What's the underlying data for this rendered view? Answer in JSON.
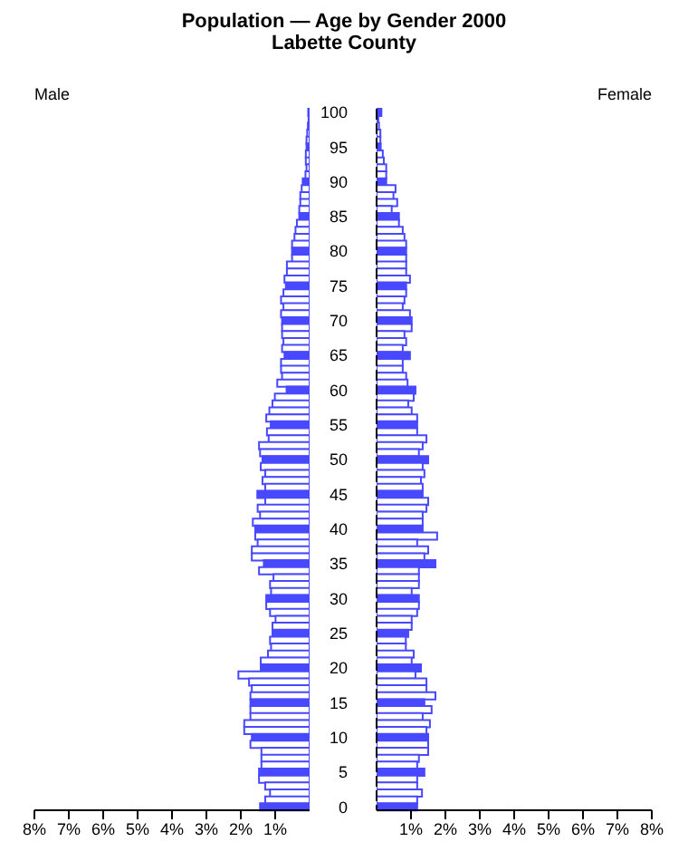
{
  "chart_data": [
    {
      "type": "bar",
      "orientation": "horizontal",
      "title": "Population — Age by Gender 2000",
      "subtitle": "Labette County",
      "tick_labels": "x",
      "categories": [
        "100",
        null,
        null,
        null,
        null,
        "95",
        null,
        null,
        null,
        null,
        "90",
        null,
        null,
        null,
        null,
        "85",
        null,
        null,
        null,
        null,
        "80",
        null,
        null,
        null,
        null,
        "75",
        null,
        null,
        null,
        null,
        "70",
        null,
        null,
        null,
        null,
        "65",
        null,
        null,
        null,
        null,
        "60",
        null,
        null,
        null,
        null,
        "55",
        null,
        null,
        null,
        null,
        "50",
        null,
        null,
        null,
        null,
        "45",
        null,
        null,
        null,
        null,
        "40",
        null,
        null,
        null,
        null,
        "35",
        null,
        null,
        null,
        null,
        "30",
        null,
        null,
        null,
        null,
        "25",
        null,
        null,
        null,
        null,
        "20",
        null,
        null,
        null,
        null,
        "15",
        null,
        null,
        null,
        null,
        "10",
        null,
        null,
        null,
        null,
        "5",
        null,
        null,
        null,
        null,
        "0"
      ],
      "xlim": [
        8,
        0
      ],
      "xticks": [
        {
          "value": 8,
          "label": "8%"
        },
        {
          "value": 7,
          "label": "7%"
        },
        {
          "value": 6,
          "label": "6%"
        },
        {
          "value": 5,
          "label": "5%"
        },
        {
          "value": 4,
          "label": "4%"
        },
        {
          "value": 3,
          "label": "3%"
        },
        {
          "value": 2,
          "label": "2%"
        },
        {
          "value": 1,
          "label": "1%"
        }
      ],
      "colors": [
        "#4848ff",
        "#ffffff",
        "#ffffff",
        "#ffffff",
        "#ffffff",
        "#4848ff",
        "#ffffff",
        "#ffffff",
        "#ffffff",
        "#ffffff",
        "#4848ff",
        "#ffffff",
        "#ffffff",
        "#ffffff",
        "#ffffff",
        "#4848ff",
        "#ffffff",
        "#ffffff",
        "#ffffff",
        "#ffffff",
        "#4848ff",
        "#ffffff",
        "#ffffff",
        "#ffffff",
        "#ffffff",
        "#4848ff",
        "#ffffff",
        "#ffffff",
        "#ffffff",
        "#ffffff",
        "#4848ff",
        "#ffffff",
        "#ffffff",
        "#ffffff",
        "#ffffff",
        "#4848ff",
        "#ffffff",
        "#ffffff",
        "#ffffff",
        "#ffffff",
        "#4848ff",
        "#ffffff",
        "#ffffff",
        "#ffffff",
        "#ffffff",
        "#4848ff",
        "#ffffff",
        "#ffffff",
        "#ffffff",
        "#ffffff",
        "#4848ff",
        "#ffffff",
        "#ffffff",
        "#ffffff",
        "#ffffff",
        "#4848ff",
        "#ffffff",
        "#ffffff",
        "#ffffff",
        "#ffffff",
        "#4848ff",
        "#ffffff",
        "#ffffff",
        "#ffffff",
        "#ffffff",
        "#4848ff",
        "#ffffff",
        "#ffffff",
        "#ffffff",
        "#ffffff",
        "#4848ff",
        "#ffffff",
        "#ffffff",
        "#ffffff",
        "#ffffff",
        "#4848ff",
        "#ffffff",
        "#ffffff",
        "#ffffff",
        "#ffffff",
        "#4848ff",
        "#ffffff",
        "#ffffff",
        "#ffffff",
        "#ffffff",
        "#4848ff",
        "#ffffff",
        "#ffffff",
        "#ffffff",
        "#ffffff",
        "#4848ff",
        "#ffffff",
        "#ffffff",
        "#ffffff",
        "#ffffff",
        "#4848ff",
        "#ffffff",
        "#ffffff",
        "#ffffff",
        "#ffffff",
        "#4848ff"
      ],
      "series": [
        {
          "name": "Male",
          "color": "#4848ff",
          "values": [
            0.04,
            0.03,
            0.05,
            0.07,
            0.09,
            0.09,
            0.11,
            0.11,
            0.09,
            0.12,
            0.2,
            0.23,
            0.27,
            0.27,
            0.3,
            0.3,
            0.37,
            0.41,
            0.44,
            0.51,
            0.51,
            0.51,
            0.66,
            0.66,
            0.73,
            0.69,
            0.76,
            0.83,
            0.76,
            0.83,
            0.8,
            0.8,
            0.8,
            0.76,
            0.8,
            0.73,
            0.83,
            0.83,
            0.8,
            0.94,
            0.67,
            1.01,
            1.08,
            1.17,
            1.26,
            1.13,
            1.24,
            1.19,
            1.47,
            1.44,
            1.37,
            1.42,
            1.29,
            1.37,
            1.29,
            1.52,
            1.29,
            1.51,
            1.44,
            1.65,
            1.58,
            1.58,
            1.51,
            1.68,
            1.68,
            1.33,
            1.47,
            1.05,
            1.15,
            1.12,
            1.26,
            1.26,
            1.15,
            0.99,
            1.08,
            1.08,
            1.15,
            1.12,
            1.21,
            1.42,
            1.42,
            2.07,
            1.76,
            1.68,
            1.72,
            1.72,
            1.72,
            1.72,
            1.9,
            1.9,
            1.68,
            1.72,
            1.4,
            1.4,
            1.4,
            1.47,
            1.47,
            1.29,
            1.15,
            1.29,
            1.44
          ]
        }
      ]
    },
    {
      "type": "bar",
      "orientation": "horizontal",
      "categories": [
        "100",
        null,
        null,
        null,
        null,
        "95",
        null,
        null,
        null,
        null,
        "90",
        null,
        null,
        null,
        null,
        "85",
        null,
        null,
        null,
        null,
        "80",
        null,
        null,
        null,
        null,
        "75",
        null,
        null,
        null,
        null,
        "70",
        null,
        null,
        null,
        null,
        "65",
        null,
        null,
        null,
        null,
        "60",
        null,
        null,
        null,
        null,
        "55",
        null,
        null,
        null,
        null,
        "50",
        null,
        null,
        null,
        null,
        "45",
        null,
        null,
        null,
        null,
        "40",
        null,
        null,
        null,
        null,
        "35",
        null,
        null,
        null,
        null,
        "30",
        null,
        null,
        null,
        null,
        "25",
        null,
        null,
        null,
        null,
        "20",
        null,
        null,
        null,
        null,
        "15",
        null,
        null,
        null,
        null,
        "10",
        null,
        null,
        null,
        null,
        "5",
        null,
        null,
        null,
        null,
        "0"
      ],
      "xlim": [
        0,
        8
      ],
      "xticks": [
        {
          "value": 1,
          "label": "1%"
        },
        {
          "value": 2,
          "label": "2%"
        },
        {
          "value": 3,
          "label": "3%"
        },
        {
          "value": 4,
          "label": "4%"
        },
        {
          "value": 5,
          "label": "5%"
        },
        {
          "value": 6,
          "label": "6%"
        },
        {
          "value": 7,
          "label": "7%"
        },
        {
          "value": 8,
          "label": "8%"
        }
      ],
      "colors": [
        "#4848ff",
        "#ffffff",
        "#ffffff",
        "#ffffff",
        "#ffffff",
        "#4848ff",
        "#ffffff",
        "#ffffff",
        "#ffffff",
        "#ffffff",
        "#4848ff",
        "#ffffff",
        "#ffffff",
        "#ffffff",
        "#ffffff",
        "#4848ff",
        "#ffffff",
        "#ffffff",
        "#ffffff",
        "#ffffff",
        "#4848ff",
        "#ffffff",
        "#ffffff",
        "#ffffff",
        "#ffffff",
        "#4848ff",
        "#ffffff",
        "#ffffff",
        "#ffffff",
        "#ffffff",
        "#4848ff",
        "#ffffff",
        "#ffffff",
        "#ffffff",
        "#ffffff",
        "#4848ff",
        "#ffffff",
        "#ffffff",
        "#ffffff",
        "#ffffff",
        "#4848ff",
        "#ffffff",
        "#ffffff",
        "#ffffff",
        "#ffffff",
        "#4848ff",
        "#ffffff",
        "#ffffff",
        "#ffffff",
        "#ffffff",
        "#4848ff",
        "#ffffff",
        "#ffffff",
        "#ffffff",
        "#ffffff",
        "#4848ff",
        "#ffffff",
        "#ffffff",
        "#ffffff",
        "#ffffff",
        "#4848ff",
        "#ffffff",
        "#ffffff",
        "#ffffff",
        "#ffffff",
        "#4848ff",
        "#ffffff",
        "#ffffff",
        "#ffffff",
        "#ffffff",
        "#4848ff",
        "#ffffff",
        "#ffffff",
        "#ffffff",
        "#ffffff",
        "#4848ff",
        "#ffffff",
        "#ffffff",
        "#ffffff",
        "#ffffff",
        "#4848ff",
        "#ffffff",
        "#ffffff",
        "#ffffff",
        "#ffffff",
        "#4848ff",
        "#ffffff",
        "#ffffff",
        "#ffffff",
        "#ffffff",
        "#4848ff",
        "#ffffff",
        "#ffffff",
        "#ffffff",
        "#ffffff",
        "#4848ff",
        "#ffffff",
        "#ffffff",
        "#ffffff",
        "#ffffff",
        "#4848ff"
      ],
      "series": [
        {
          "name": "Female",
          "color": "#4848ff",
          "values": [
            0.14,
            0.05,
            0.07,
            0.11,
            0.11,
            0.12,
            0.18,
            0.21,
            0.28,
            0.28,
            0.28,
            0.55,
            0.49,
            0.6,
            0.44,
            0.65,
            0.65,
            0.76,
            0.81,
            0.86,
            0.86,
            0.86,
            0.86,
            0.86,
            0.97,
            0.86,
            0.86,
            0.81,
            0.76,
            0.97,
            1.02,
            1.02,
            0.81,
            0.86,
            0.76,
            0.97,
            0.76,
            0.76,
            0.86,
            0.9,
            1.13,
            1.08,
            0.92,
            1.02,
            1.18,
            1.18,
            1.18,
            1.45,
            1.34,
            1.23,
            1.5,
            1.34,
            1.39,
            1.29,
            1.34,
            1.34,
            1.5,
            1.45,
            1.34,
            1.34,
            1.34,
            1.76,
            1.18,
            1.5,
            1.39,
            1.71,
            1.23,
            1.23,
            1.23,
            1.02,
            1.23,
            1.23,
            1.18,
            1.02,
            1.02,
            0.92,
            0.85,
            0.85,
            1.08,
            1.02,
            1.29,
            1.13,
            1.45,
            1.45,
            1.71,
            1.39,
            1.6,
            1.34,
            1.55,
            1.45,
            1.5,
            1.5,
            1.5,
            1.23,
            1.18,
            1.39,
            1.18,
            1.18,
            1.32,
            1.18,
            1.18
          ]
        }
      ]
    }
  ]
}
